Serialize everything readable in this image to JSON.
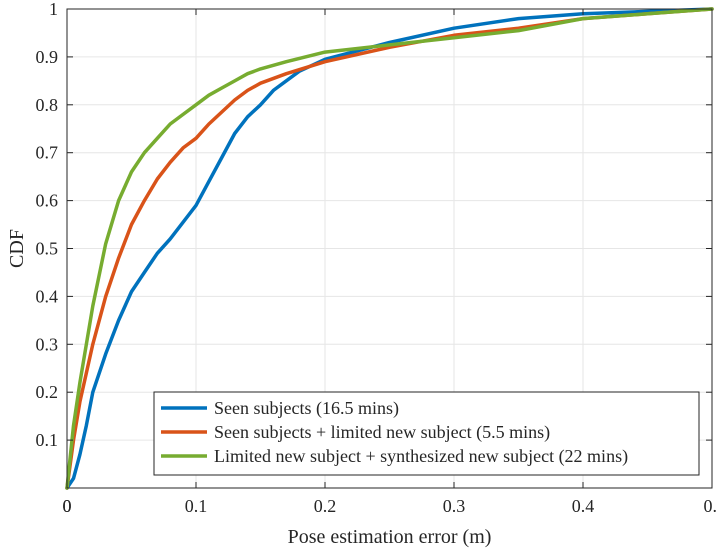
{
  "chart_data": {
    "type": "line",
    "title": "",
    "xlabel": "Pose estimation error (m)",
    "ylabel": "CDF",
    "xlim": [
      0,
      0.5
    ],
    "ylim": [
      0,
      1
    ],
    "grid": true,
    "legend_position": "bottom-right",
    "xtick_labels": [
      "0",
      "0.1",
      "0.2",
      "0.3",
      "0.4",
      "0."
    ],
    "ytick_labels": [
      "0.1",
      "0.2",
      "0.3",
      "0.4",
      "0.5",
      "0.6",
      "0.7",
      "0.8",
      "0.9",
      "1"
    ],
    "series": [
      {
        "name": "Seen subjects (16.5 mins)",
        "color": "#0072BD",
        "x": [
          0,
          0.005,
          0.01,
          0.015,
          0.02,
          0.03,
          0.04,
          0.05,
          0.06,
          0.07,
          0.08,
          0.09,
          0.1,
          0.11,
          0.12,
          0.13,
          0.14,
          0.15,
          0.16,
          0.18,
          0.2,
          0.25,
          0.3,
          0.35,
          0.4,
          0.45,
          0.5
        ],
        "y": [
          0,
          0.02,
          0.07,
          0.13,
          0.2,
          0.28,
          0.35,
          0.41,
          0.45,
          0.49,
          0.52,
          0.555,
          0.59,
          0.64,
          0.69,
          0.74,
          0.775,
          0.8,
          0.83,
          0.87,
          0.895,
          0.93,
          0.96,
          0.98,
          0.99,
          0.995,
          1.0
        ]
      },
      {
        "name": "Seen subjects + limited new subject (5.5 mins)",
        "color": "#D95319",
        "x": [
          0,
          0.005,
          0.01,
          0.02,
          0.03,
          0.04,
          0.05,
          0.06,
          0.07,
          0.08,
          0.09,
          0.1,
          0.11,
          0.12,
          0.13,
          0.14,
          0.15,
          0.17,
          0.2,
          0.25,
          0.3,
          0.35,
          0.4,
          0.45,
          0.5
        ],
        "y": [
          0,
          0.1,
          0.18,
          0.3,
          0.4,
          0.48,
          0.55,
          0.6,
          0.645,
          0.68,
          0.71,
          0.73,
          0.76,
          0.785,
          0.81,
          0.83,
          0.845,
          0.865,
          0.89,
          0.92,
          0.945,
          0.96,
          0.98,
          0.99,
          1.0
        ]
      },
      {
        "name": "Limited new subject + synthesized new subject (22 mins)",
        "color": "#77AC30",
        "x": [
          0,
          0.005,
          0.01,
          0.02,
          0.03,
          0.04,
          0.05,
          0.06,
          0.07,
          0.08,
          0.09,
          0.1,
          0.11,
          0.12,
          0.13,
          0.14,
          0.15,
          0.17,
          0.2,
          0.25,
          0.3,
          0.35,
          0.4,
          0.45,
          0.5
        ],
        "y": [
          0,
          0.13,
          0.22,
          0.38,
          0.51,
          0.6,
          0.66,
          0.7,
          0.73,
          0.76,
          0.78,
          0.8,
          0.82,
          0.835,
          0.85,
          0.865,
          0.875,
          0.89,
          0.91,
          0.925,
          0.94,
          0.955,
          0.98,
          0.99,
          1.0
        ]
      }
    ]
  }
}
